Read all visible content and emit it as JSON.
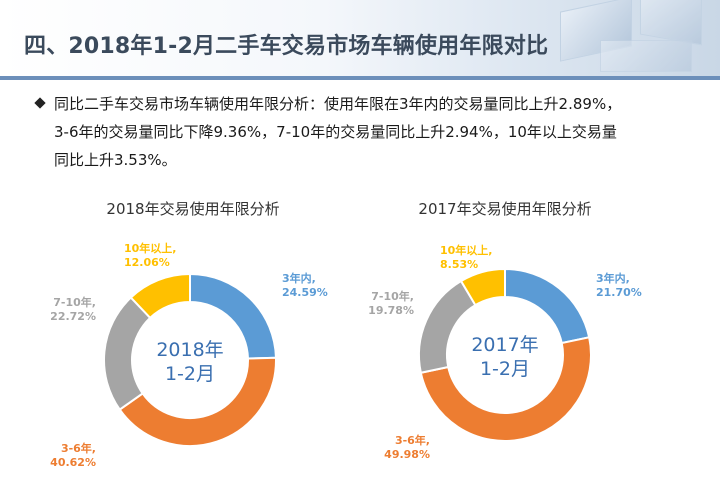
{
  "header": {
    "title": "四、2018年1-2月二手车交易市场车辆使用年限对比"
  },
  "description": {
    "line1": "同比二手车交易市场车辆使用年限分析：使用年限在3年内的交易量同比上升2.89%，",
    "line2": "3-6年的交易量同比下降9.36%，7-10年的交易量同比上升2.94%，10年以上交易量",
    "line3": "同比上升3.53%。"
  },
  "colors": {
    "within3": "#5b9bd5",
    "y3to6": "#ed7d31",
    "y7to10": "#a5a5a5",
    "over10": "#ffc000",
    "center_text": "#3a6fb0"
  },
  "chart_data": [
    {
      "type": "pie",
      "variant": "donut",
      "title": "2018年交易使用年限分析",
      "center_label": [
        "2018年",
        "1-2月"
      ],
      "categories": [
        "3年内",
        "3-6年",
        "7-10年",
        "10年以上"
      ],
      "values": [
        24.59,
        40.62,
        22.72,
        12.06
      ],
      "labels": [
        {
          "name": "3年内,",
          "value": "24.59%"
        },
        {
          "name": "3-6年,",
          "value": "40.62%"
        },
        {
          "name": "7-10年,",
          "value": "22.72%"
        },
        {
          "name": "10年以上,",
          "value": "12.06%"
        }
      ]
    },
    {
      "type": "pie",
      "variant": "donut",
      "title": "2017年交易使用年限分析",
      "center_label": [
        "2017年",
        "1-2月"
      ],
      "categories": [
        "3年内",
        "3-6年",
        "7-10年",
        "10年以上"
      ],
      "values": [
        21.7,
        49.98,
        19.78,
        8.53
      ],
      "labels": [
        {
          "name": "3年内,",
          "value": "21.70%"
        },
        {
          "name": "3-6年,",
          "value": "49.98%"
        },
        {
          "name": "7-10年,",
          "value": "19.78%"
        },
        {
          "name": "10年以上,",
          "value": "8.53%"
        }
      ]
    }
  ]
}
